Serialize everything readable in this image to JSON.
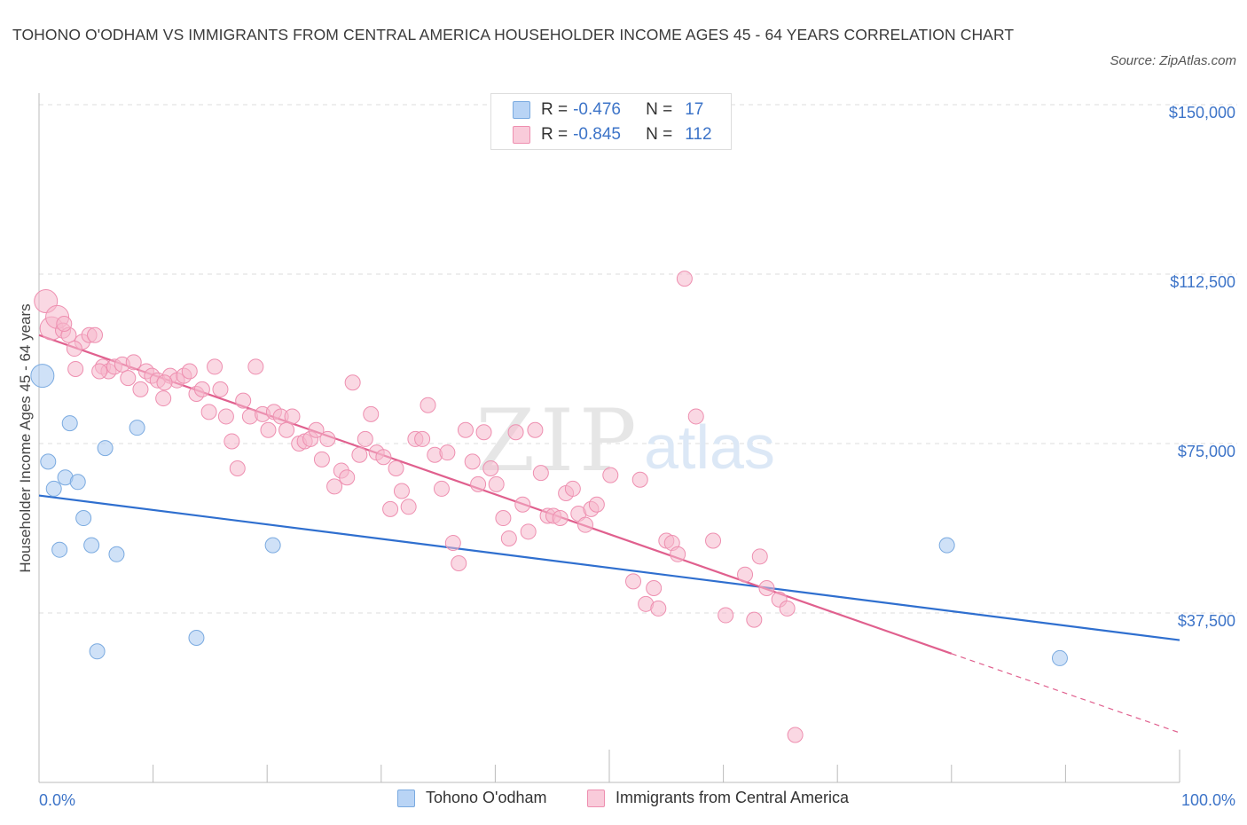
{
  "header": {
    "title": "TOHONO O'ODHAM VS IMMIGRANTS FROM CENTRAL AMERICA HOUSEHOLDER INCOME AGES 45 - 64 YEARS CORRELATION CHART",
    "source": "Source: ZipAtlas.com"
  },
  "watermark": {
    "zip": "ZIP",
    "atlas": "atlas"
  },
  "legend": {
    "r_label": "R =",
    "n_label": "N =",
    "rows": [
      {
        "r": "-0.476",
        "n": "17",
        "color": "#a8c8f0"
      },
      {
        "r": "-0.845",
        "n": "112",
        "color": "#f5b8cc"
      }
    ]
  },
  "chart_data": {
    "type": "scatter",
    "xlabel": "",
    "ylabel": "Householder Income Ages 45 - 64 years",
    "xlim": [
      0,
      100
    ],
    "ylim": [
      0,
      150000
    ],
    "x_tick_labels": [
      "0.0%",
      "100.0%"
    ],
    "y_tick_labels": [
      "$37,500",
      "$75,000",
      "$112,500",
      "$150,000"
    ],
    "y_ticks": [
      37500,
      75000,
      112500,
      150000
    ],
    "grid": true,
    "legend_position": "bottom",
    "series": [
      {
        "name": "Tohono O'odham",
        "color": "#a8c8f0",
        "stroke": "#7aaae0",
        "trend_color": "#2f6fcf",
        "trend": {
          "x0": 0,
          "y0": 63500,
          "x1": 100,
          "y1": 31500
        },
        "points": [
          {
            "x": 0.3,
            "y": 90000,
            "s": 2
          },
          {
            "x": 0.8,
            "y": 71000,
            "s": 1
          },
          {
            "x": 1.3,
            "y": 65000,
            "s": 1
          },
          {
            "x": 1.8,
            "y": 51500,
            "s": 1
          },
          {
            "x": 2.3,
            "y": 67500,
            "s": 1
          },
          {
            "x": 2.7,
            "y": 79500,
            "s": 1
          },
          {
            "x": 3.4,
            "y": 66500,
            "s": 1
          },
          {
            "x": 3.9,
            "y": 58500,
            "s": 1
          },
          {
            "x": 4.6,
            "y": 52500,
            "s": 1
          },
          {
            "x": 5.1,
            "y": 29000,
            "s": 1
          },
          {
            "x": 5.8,
            "y": 74000,
            "s": 1
          },
          {
            "x": 6.8,
            "y": 50500,
            "s": 1
          },
          {
            "x": 8.6,
            "y": 78500,
            "s": 1
          },
          {
            "x": 13.8,
            "y": 32000,
            "s": 1
          },
          {
            "x": 20.5,
            "y": 52500,
            "s": 1
          },
          {
            "x": 79.6,
            "y": 52500,
            "s": 1
          },
          {
            "x": 89.5,
            "y": 27500,
            "s": 1
          }
        ]
      },
      {
        "name": "Immigrants from Central America",
        "color": "#f5b8cc",
        "stroke": "#ee8fb0",
        "trend_color": "#e0608e",
        "trend": {
          "x0": 0,
          "y0": 99000,
          "x1": 80,
          "y1": 28500,
          "x_dash_end": 100,
          "y_dash_end": 11000
        },
        "points": [
          {
            "x": 0.6,
            "y": 106500,
            "s": 2
          },
          {
            "x": 1.1,
            "y": 100500,
            "s": 2
          },
          {
            "x": 1.6,
            "y": 103000,
            "s": 2
          },
          {
            "x": 2.1,
            "y": 100000,
            "s": 1
          },
          {
            "x": 2.6,
            "y": 99000,
            "s": 1
          },
          {
            "x": 3.2,
            "y": 91500,
            "s": 1
          },
          {
            "x": 3.8,
            "y": 97500,
            "s": 1
          },
          {
            "x": 4.4,
            "y": 99000,
            "s": 1
          },
          {
            "x": 4.9,
            "y": 99000,
            "s": 1
          },
          {
            "x": 5.6,
            "y": 92000,
            "s": 1
          },
          {
            "x": 6.1,
            "y": 91000,
            "s": 1
          },
          {
            "x": 6.6,
            "y": 92000,
            "s": 1
          },
          {
            "x": 7.3,
            "y": 92500,
            "s": 1
          },
          {
            "x": 7.8,
            "y": 89500,
            "s": 1
          },
          {
            "x": 8.3,
            "y": 93000,
            "s": 1
          },
          {
            "x": 8.9,
            "y": 87000,
            "s": 1
          },
          {
            "x": 9.4,
            "y": 91000,
            "s": 1
          },
          {
            "x": 9.9,
            "y": 90000,
            "s": 1
          },
          {
            "x": 10.4,
            "y": 89000,
            "s": 1
          },
          {
            "x": 10.9,
            "y": 85000,
            "s": 1
          },
          {
            "x": 11.5,
            "y": 90000,
            "s": 1
          },
          {
            "x": 12.1,
            "y": 89000,
            "s": 1
          },
          {
            "x": 12.7,
            "y": 90000,
            "s": 1
          },
          {
            "x": 13.2,
            "y": 91000,
            "s": 1
          },
          {
            "x": 13.8,
            "y": 86000,
            "s": 1
          },
          {
            "x": 14.3,
            "y": 87000,
            "s": 1
          },
          {
            "x": 14.9,
            "y": 82000,
            "s": 1
          },
          {
            "x": 15.4,
            "y": 92000,
            "s": 1
          },
          {
            "x": 15.9,
            "y": 87000,
            "s": 1
          },
          {
            "x": 16.4,
            "y": 81000,
            "s": 1
          },
          {
            "x": 16.9,
            "y": 75500,
            "s": 1
          },
          {
            "x": 17.4,
            "y": 69500,
            "s": 1
          },
          {
            "x": 17.9,
            "y": 84500,
            "s": 1
          },
          {
            "x": 18.5,
            "y": 81000,
            "s": 1
          },
          {
            "x": 19.0,
            "y": 92000,
            "s": 1
          },
          {
            "x": 19.6,
            "y": 81500,
            "s": 1
          },
          {
            "x": 20.1,
            "y": 78000,
            "s": 1
          },
          {
            "x": 20.6,
            "y": 82000,
            "s": 1
          },
          {
            "x": 21.2,
            "y": 81000,
            "s": 1
          },
          {
            "x": 21.7,
            "y": 78000,
            "s": 1
          },
          {
            "x": 22.2,
            "y": 81000,
            "s": 1
          },
          {
            "x": 22.8,
            "y": 75000,
            "s": 1
          },
          {
            "x": 23.3,
            "y": 75500,
            "s": 1
          },
          {
            "x": 23.8,
            "y": 76000,
            "s": 1
          },
          {
            "x": 24.3,
            "y": 78000,
            "s": 1
          },
          {
            "x": 24.8,
            "y": 71500,
            "s": 1
          },
          {
            "x": 25.3,
            "y": 76000,
            "s": 1
          },
          {
            "x": 25.9,
            "y": 65500,
            "s": 1
          },
          {
            "x": 26.5,
            "y": 69000,
            "s": 1
          },
          {
            "x": 27.0,
            "y": 67500,
            "s": 1
          },
          {
            "x": 27.5,
            "y": 88500,
            "s": 1
          },
          {
            "x": 28.1,
            "y": 72500,
            "s": 1
          },
          {
            "x": 28.6,
            "y": 76000,
            "s": 1
          },
          {
            "x": 29.1,
            "y": 81500,
            "s": 1
          },
          {
            "x": 29.6,
            "y": 73000,
            "s": 1
          },
          {
            "x": 30.2,
            "y": 72000,
            "s": 1
          },
          {
            "x": 30.8,
            "y": 60500,
            "s": 1
          },
          {
            "x": 31.3,
            "y": 69500,
            "s": 1
          },
          {
            "x": 31.8,
            "y": 64500,
            "s": 1
          },
          {
            "x": 32.4,
            "y": 61000,
            "s": 1
          },
          {
            "x": 33.0,
            "y": 76000,
            "s": 1
          },
          {
            "x": 33.6,
            "y": 76000,
            "s": 1
          },
          {
            "x": 34.1,
            "y": 83500,
            "s": 1
          },
          {
            "x": 34.7,
            "y": 72500,
            "s": 1
          },
          {
            "x": 35.3,
            "y": 65000,
            "s": 1
          },
          {
            "x": 35.8,
            "y": 73000,
            "s": 1
          },
          {
            "x": 36.3,
            "y": 53000,
            "s": 1
          },
          {
            "x": 36.8,
            "y": 48500,
            "s": 1
          },
          {
            "x": 37.4,
            "y": 78000,
            "s": 1
          },
          {
            "x": 38.0,
            "y": 71000,
            "s": 1
          },
          {
            "x": 38.5,
            "y": 66000,
            "s": 1
          },
          {
            "x": 39.0,
            "y": 77500,
            "s": 1
          },
          {
            "x": 39.6,
            "y": 69500,
            "s": 1
          },
          {
            "x": 40.1,
            "y": 66000,
            "s": 1
          },
          {
            "x": 40.7,
            "y": 58500,
            "s": 1
          },
          {
            "x": 41.2,
            "y": 54000,
            "s": 1
          },
          {
            "x": 41.8,
            "y": 77500,
            "s": 1
          },
          {
            "x": 42.4,
            "y": 61500,
            "s": 1
          },
          {
            "x": 42.9,
            "y": 55500,
            "s": 1
          },
          {
            "x": 43.5,
            "y": 78000,
            "s": 1
          },
          {
            "x": 44.0,
            "y": 68500,
            "s": 1
          },
          {
            "x": 44.6,
            "y": 59000,
            "s": 1
          },
          {
            "x": 45.1,
            "y": 59000,
            "s": 1
          },
          {
            "x": 45.7,
            "y": 58500,
            "s": 1
          },
          {
            "x": 46.2,
            "y": 64000,
            "s": 1
          },
          {
            "x": 46.8,
            "y": 65000,
            "s": 1
          },
          {
            "x": 47.3,
            "y": 59500,
            "s": 1
          },
          {
            "x": 47.9,
            "y": 57000,
            "s": 1
          },
          {
            "x": 48.4,
            "y": 60500,
            "s": 1
          },
          {
            "x": 48.9,
            "y": 61500,
            "s": 1
          },
          {
            "x": 50.1,
            "y": 68000,
            "s": 1
          },
          {
            "x": 56.6,
            "y": 111500,
            "s": 1
          },
          {
            "x": 52.1,
            "y": 44500,
            "s": 1
          },
          {
            "x": 52.7,
            "y": 67000,
            "s": 1
          },
          {
            "x": 53.2,
            "y": 39500,
            "s": 1
          },
          {
            "x": 53.9,
            "y": 43000,
            "s": 1
          },
          {
            "x": 54.3,
            "y": 38500,
            "s": 1
          },
          {
            "x": 55.0,
            "y": 53500,
            "s": 1
          },
          {
            "x": 55.5,
            "y": 53000,
            "s": 1
          },
          {
            "x": 56.0,
            "y": 50500,
            "s": 1
          },
          {
            "x": 57.6,
            "y": 81000,
            "s": 1
          },
          {
            "x": 59.1,
            "y": 53500,
            "s": 1
          },
          {
            "x": 60.2,
            "y": 37000,
            "s": 1
          },
          {
            "x": 61.9,
            "y": 46000,
            "s": 1
          },
          {
            "x": 62.7,
            "y": 36000,
            "s": 1
          },
          {
            "x": 63.2,
            "y": 50000,
            "s": 1
          },
          {
            "x": 63.8,
            "y": 43000,
            "s": 1
          },
          {
            "x": 64.9,
            "y": 40500,
            "s": 1
          },
          {
            "x": 65.6,
            "y": 38500,
            "s": 1
          },
          {
            "x": 66.3,
            "y": 10500,
            "s": 1
          },
          {
            "x": 2.2,
            "y": 101500,
            "s": 1
          },
          {
            "x": 3.1,
            "y": 96000,
            "s": 1
          },
          {
            "x": 5.3,
            "y": 91000,
            "s": 1
          },
          {
            "x": 11.0,
            "y": 88500,
            "s": 1
          }
        ]
      }
    ]
  }
}
